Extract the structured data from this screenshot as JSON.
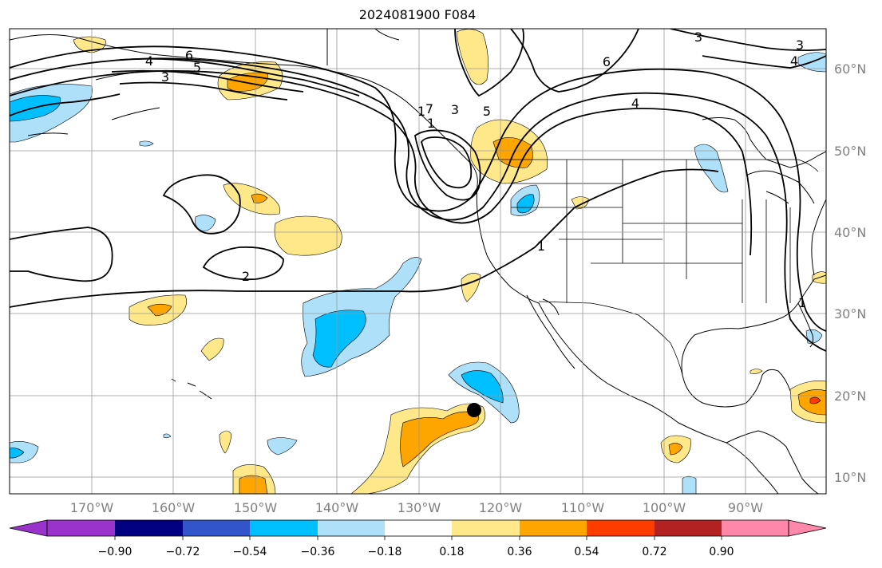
{
  "title": "2024081900 F084",
  "longitude_labels": [
    "170°W",
    "160°W",
    "150°W",
    "140°W",
    "130°W",
    "120°W",
    "110°W",
    "100°W",
    "90°W"
  ],
  "latitude_labels": [
    "60°N",
    "50°N",
    "40°N",
    "30°N",
    "20°N",
    "10°N"
  ],
  "colorbar": {
    "tick_labels": [
      "−0.90",
      "−0.72",
      "−0.54",
      "−0.36",
      "−0.18",
      "0.18",
      "0.36",
      "0.54",
      "0.72",
      "0.90"
    ],
    "colors": [
      "#9933cc",
      "#000080",
      "#3355cc",
      "#00bfff",
      "#aee0fa",
      "#ffffff",
      "#ffe88a",
      "#ffa500",
      "#ff3c00",
      "#b22222",
      "#ff88aa"
    ]
  },
  "contour_labels": [
    "6",
    "5",
    "4",
    "3",
    "3",
    "1",
    "1",
    "7",
    "3",
    "5",
    "6",
    "4",
    "3",
    "4",
    "1",
    "2",
    "1"
  ],
  "fill_colors": {
    "light_yellow": "#ffe88a",
    "orange": "#ffa500",
    "red": "#ff3c00",
    "light_blue": "#aee0fa",
    "blue": "#00bfff"
  }
}
